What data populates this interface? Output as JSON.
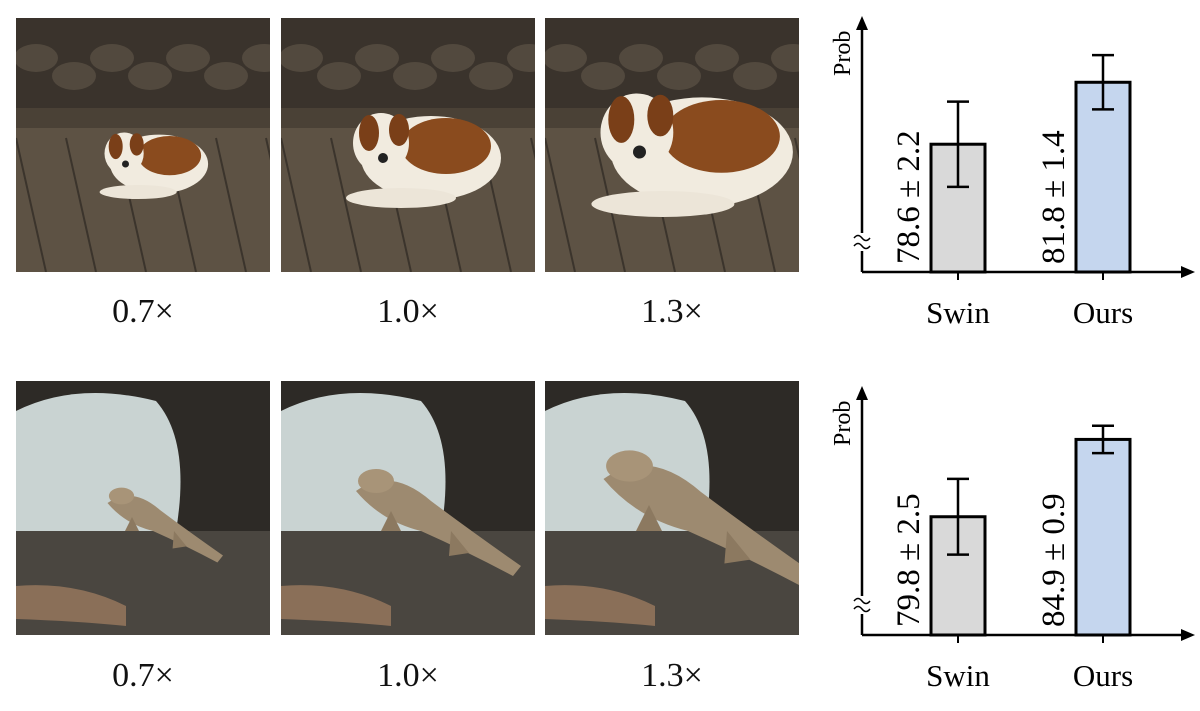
{
  "rows": [
    {
      "subject": "dog",
      "scales": [
        "0.7×",
        "1.0×",
        "1.3×"
      ],
      "chart_data": {
        "type": "bar",
        "categories": [
          "Swin",
          "Ours"
        ],
        "values": [
          78.6,
          81.8
        ],
        "errors": [
          2.2,
          1.4
        ],
        "bar_labels": [
          "78.6 ± 2.2",
          "81.8 ± 1.4"
        ],
        "ylabel": "Prob",
        "xlabel": "",
        "ylim": [
          72,
          84.5
        ],
        "axis_break": true,
        "colors": [
          "#d9d9d9",
          "#c5d6ee"
        ]
      }
    },
    {
      "subject": "komodo-dragon",
      "scales": [
        "0.7×",
        "1.0×",
        "1.3×"
      ],
      "chart_data": {
        "type": "bar",
        "categories": [
          "Swin",
          "Ours"
        ],
        "values": [
          79.8,
          84.9
        ],
        "errors": [
          2.5,
          0.9
        ],
        "bar_labels": [
          "79.8 ± 2.5",
          "84.9 ± 0.9"
        ],
        "ylabel": "Prob",
        "xlabel": "",
        "ylim": [
          72,
          87.5
        ],
        "axis_break": true,
        "colors": [
          "#d9d9d9",
          "#c5d6ee"
        ]
      }
    }
  ]
}
